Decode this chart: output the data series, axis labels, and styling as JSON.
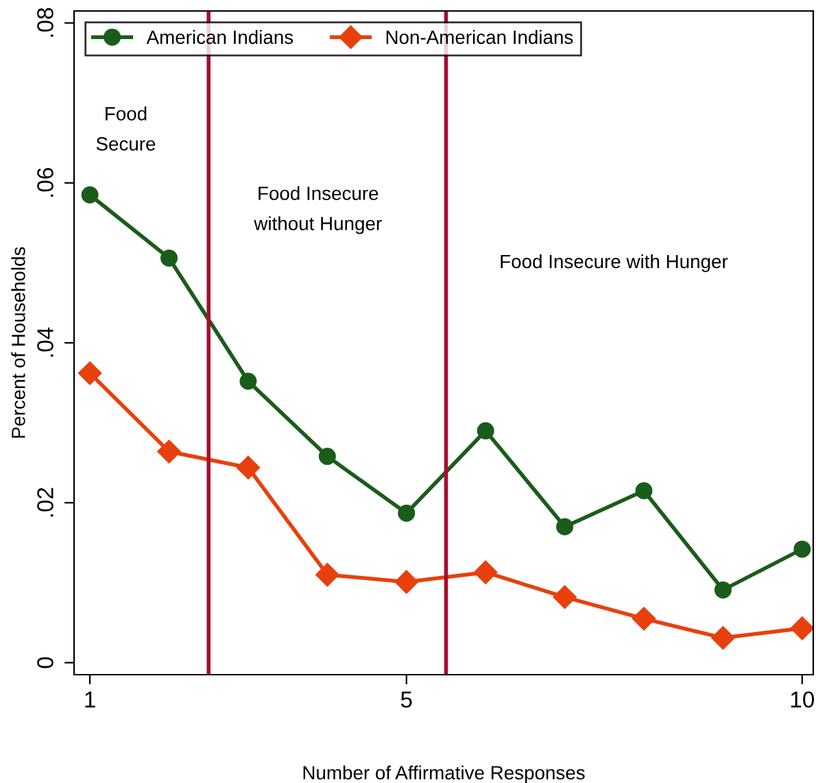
{
  "chart_data": {
    "type": "line",
    "xlabel": "Number of Affirmative Responses",
    "ylabel": "Percent of Households",
    "x": [
      1,
      2,
      3,
      4,
      5,
      6,
      7,
      8,
      9,
      10
    ],
    "series": [
      {
        "name": "American Indians",
        "color": "#1a5c1a",
        "marker": "circle",
        "values": [
          0.0585,
          0.0506,
          0.0352,
          0.0258,
          0.0187,
          0.029,
          0.017,
          0.0215,
          0.0091,
          0.0142
        ]
      },
      {
        "name": "Non-American Indians",
        "color": "#e8400c",
        "marker": "diamond",
        "values": [
          0.0362,
          0.0264,
          0.0244,
          0.011,
          0.0101,
          0.0113,
          0.0082,
          0.0055,
          0.0031,
          0.0043
        ]
      }
    ],
    "xlim": [
      0.8,
      10.14
    ],
    "xticks": [
      1,
      5,
      10
    ],
    "ylim": [
      -0.0015,
      0.0815
    ],
    "yticks": [
      {
        "value": 0,
        "label": "0"
      },
      {
        "value": 0.02,
        "label": ".02"
      },
      {
        "value": 0.04,
        "label": ".04"
      },
      {
        "value": 0.06,
        "label": ".06"
      },
      {
        "value": 0.08,
        "label": ".08"
      }
    ],
    "ref_lines": [
      {
        "axis": "x",
        "value": 2.5,
        "color": "#a50d2e"
      },
      {
        "axis": "x",
        "value": 5.5,
        "color": "#a50d2e"
      }
    ],
    "annotations": [
      "Food\nSecure",
      "Food Insecure\nwithout Hunger",
      "Food Insecure with Hunger"
    ],
    "legend": "top left",
    "grid": false,
    "line_style": "solid"
  }
}
